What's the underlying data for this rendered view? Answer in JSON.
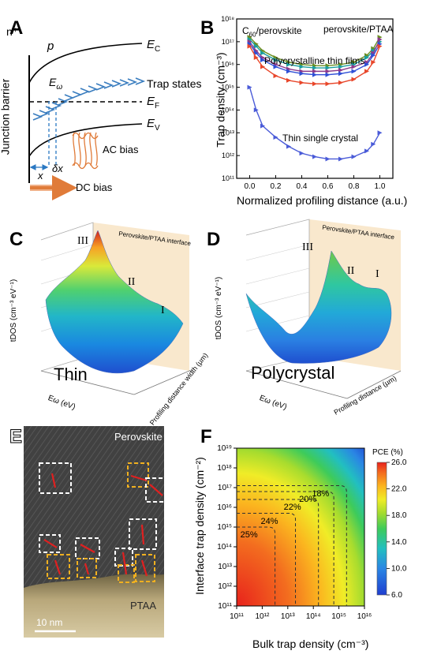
{
  "panels": {
    "A": {
      "letter": "A",
      "n_plus": "n⁺",
      "p": "p",
      "ec": "E",
      "ec_sub": "C",
      "ev": "E",
      "ev_sub": "V",
      "ef": "E",
      "ef_sub": "F",
      "ew": "E",
      "ew_sub": "ω",
      "trap_states": "Trap states",
      "junction_barrier": "Junction barrier",
      "ac_bias": "AC bias",
      "dc_bias": "DC bias",
      "x": "x",
      "dx": "δx"
    },
    "B": {
      "letter": "B",
      "c60_label": "C",
      "c60_sub": "60",
      "c60_rest": "/perovskite",
      "ptaa_label": "perovskite/PTAA",
      "poly_label": "Polycrystalline thin films",
      "single_label": "Thin single crystal",
      "ylabel": "Trap density (cm⁻³)",
      "xlabel": "Normalized profiling distance (a.u.)"
    },
    "C": {
      "letter": "C",
      "interface": "Perovskite/PTAA interface",
      "r3": "III",
      "r2": "II",
      "r1": "I",
      "big": "Thin",
      "zlabel": "tDOS (cm⁻³ eV⁻¹)",
      "xlabel": "Eω (eV)",
      "ylabel": "Profiling distance width (µm)"
    },
    "D": {
      "letter": "D",
      "interface": "Perovskite/PTAA interface",
      "r3": "III",
      "r2": "II",
      "r1": "I",
      "big": "Polycrystal",
      "zlabel": "tDOS (cm⁻³ eV⁻¹)",
      "xlabel": "Eω (eV)",
      "ylabel": "Profiling distance (µm)"
    },
    "E": {
      "letter": "E",
      "perovskite": "Perovskite",
      "ptaa": "PTAA",
      "scale": "10 nm"
    },
    "F": {
      "letter": "F",
      "ylabel": "Interface trap density (cm⁻²)",
      "xlabel": "Bulk trap density (cm⁻³)",
      "colorbar_title": "PCE (%)"
    }
  },
  "chart_data": [
    {
      "panel": "B",
      "type": "scatter",
      "title": "",
      "xlabel": "Normalized profiling distance (a.u.)",
      "ylabel": "Trap density (cm⁻³)",
      "xlim": [
        -0.1,
        1.1
      ],
      "ylim_log10": [
        11,
        18
      ],
      "yscale": "log",
      "x_ticks": [
        "0.0",
        "0.2",
        "0.4",
        "0.6",
        "0.8",
        "1.0"
      ],
      "y_ticks": [
        "10¹¹",
        "10¹²",
        "10¹³",
        "10¹⁴",
        "10¹⁵",
        "10¹⁶",
        "10¹⁷",
        "10¹⁸"
      ],
      "x": [
        0.0,
        0.05,
        0.1,
        0.2,
        0.3,
        0.4,
        0.5,
        0.6,
        0.7,
        0.8,
        0.9,
        0.95,
        1.0
      ],
      "series": [
        {
          "color": "#6b8e23",
          "log10_values": [
            17.2,
            16.9,
            16.6,
            16.3,
            16.1,
            16.0,
            15.95,
            15.95,
            16.0,
            16.1,
            16.4,
            16.7,
            17.2
          ]
        },
        {
          "color": "#1a9e9e",
          "log10_values": [
            17.1,
            16.8,
            16.5,
            16.2,
            16.0,
            15.9,
            15.85,
            15.85,
            15.9,
            16.0,
            16.3,
            16.6,
            17.0
          ]
        },
        {
          "color": "#8b3a8b",
          "log10_values": [
            17.0,
            16.6,
            16.3,
            16.0,
            15.8,
            15.7,
            15.7,
            15.7,
            15.75,
            15.9,
            16.1,
            16.5,
            17.1
          ]
        },
        {
          "color": "#2f4fd6",
          "log10_values": [
            16.9,
            16.5,
            16.2,
            15.9,
            15.7,
            15.6,
            15.55,
            15.55,
            15.6,
            15.7,
            16.0,
            16.4,
            16.9
          ]
        },
        {
          "color": "#e8462a",
          "log10_values": [
            16.8,
            16.3,
            15.9,
            15.5,
            15.3,
            15.2,
            15.15,
            15.15,
            15.2,
            15.35,
            15.7,
            16.1,
            16.8
          ]
        },
        {
          "color": "#4a5bd8",
          "log10_values": [
            15.0,
            14.0,
            13.3,
            12.8,
            12.4,
            12.1,
            11.95,
            11.85,
            11.85,
            11.95,
            12.2,
            12.5,
            13.0
          ]
        }
      ]
    },
    {
      "panel": "F",
      "type": "heatmap",
      "title": "",
      "xlabel": "Bulk trap density (cm⁻³)",
      "ylabel": "Interface trap density (cm⁻²)",
      "xscale": "log",
      "yscale": "log",
      "xlim_log10": [
        11,
        16
      ],
      "ylim_log10": [
        11,
        19
      ],
      "x_ticks": [
        "10¹¹",
        "10¹²",
        "10¹³",
        "10¹⁴",
        "10¹⁵",
        "10¹⁶"
      ],
      "y_ticks": [
        "10¹¹",
        "10¹²",
        "10¹³",
        "10¹⁴",
        "10¹⁵",
        "10¹⁶",
        "10¹⁷",
        "10¹⁸",
        "10¹⁹"
      ],
      "colorbar_ticks": [
        "6.0",
        "10.0",
        "14.0",
        "18.0",
        "22.0",
        "26.0"
      ],
      "colorbar_range": [
        6.0,
        26.0
      ],
      "contours": [
        {
          "label": "25%",
          "x_log10": 12.5,
          "y_log10": 15.0
        },
        {
          "label": "24%",
          "x_log10": 13.3,
          "y_log10": 15.7
        },
        {
          "label": "22%",
          "x_log10": 14.2,
          "y_log10": 16.4
        },
        {
          "label": "20%",
          "x_log10": 14.8,
          "y_log10": 16.8
        },
        {
          "label": "18%",
          "x_log10": 15.3,
          "y_log10": 17.1
        }
      ]
    }
  ]
}
